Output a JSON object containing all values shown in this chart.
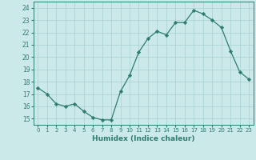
{
  "x": [
    0,
    1,
    2,
    3,
    4,
    5,
    6,
    7,
    8,
    9,
    10,
    11,
    12,
    13,
    14,
    15,
    16,
    17,
    18,
    19,
    20,
    21,
    22,
    23
  ],
  "y": [
    17.5,
    17.0,
    16.2,
    16.0,
    16.2,
    15.6,
    15.1,
    14.9,
    14.9,
    17.2,
    18.5,
    20.4,
    21.5,
    22.1,
    21.8,
    22.8,
    22.8,
    23.8,
    23.5,
    23.0,
    22.4,
    20.5,
    18.8,
    18.2
  ],
  "line_color": "#2e7d6e",
  "marker": "D",
  "marker_size": 2.2,
  "bg_color": "#cce9ea",
  "grid_color": "#aed4d5",
  "xlabel": "Humidex (Indice chaleur)",
  "xlim": [
    -0.5,
    23.5
  ],
  "ylim": [
    14.5,
    24.5
  ],
  "yticks": [
    15,
    16,
    17,
    18,
    19,
    20,
    21,
    22,
    23,
    24
  ],
  "xticks": [
    0,
    1,
    2,
    3,
    4,
    5,
    6,
    7,
    8,
    9,
    10,
    11,
    12,
    13,
    14,
    15,
    16,
    17,
    18,
    19,
    20,
    21,
    22,
    23
  ]
}
